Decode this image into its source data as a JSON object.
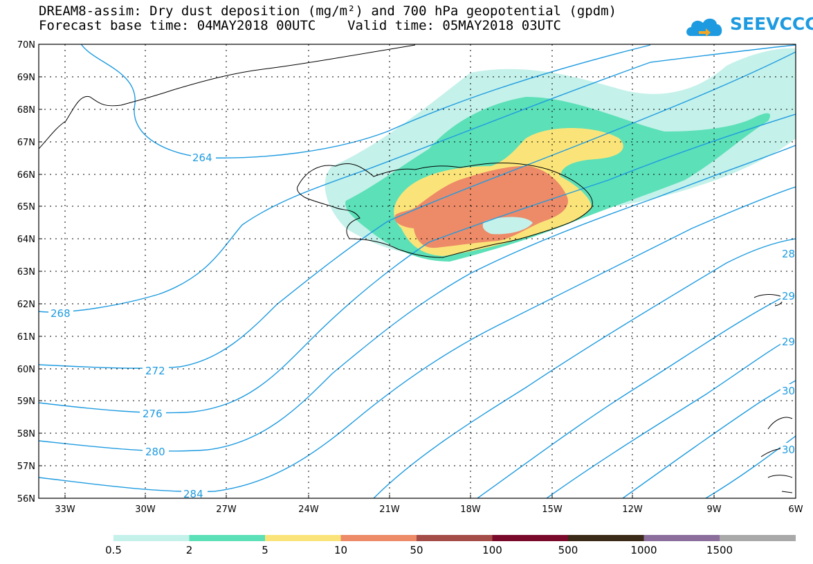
{
  "title_line1": "DREAM8-assim: Dry dust deposition (mg/m²) and 700 hPa geopotential (gpdm)",
  "title_line2": "Forecast base time: 04MAY2018 00UTC    Valid time: 05MAY2018 03UTC",
  "logo_text": "SEEVCCC",
  "lat_labels": [
    "70N",
    "69N",
    "68N",
    "67N",
    "66N",
    "65N",
    "64N",
    "63N",
    "62N",
    "61N",
    "60N",
    "59N",
    "58N",
    "57N",
    "56N"
  ],
  "lon_labels": [
    "33W",
    "30W",
    "27W",
    "24W",
    "21W",
    "18W",
    "15W",
    "12W",
    "9W",
    "6W"
  ],
  "contour_labels": [
    "264",
    "268",
    "272",
    "276",
    "280",
    "284",
    "28",
    "29",
    "29",
    "30",
    "30"
  ],
  "legend": {
    "colors": [
      "#c4f1ea",
      "#5ce0b8",
      "#fae479",
      "#ed8a68",
      "#a44c47",
      "#7a0a2c",
      "#3a2a17",
      "#8b6e9c",
      "#a9a9a9"
    ],
    "labels": [
      "0.5",
      "2",
      "5",
      "10",
      "50",
      "100",
      "500",
      "1000",
      "1500"
    ]
  },
  "colors": {
    "contour": "#1e9be0",
    "coast": "#000000"
  }
}
